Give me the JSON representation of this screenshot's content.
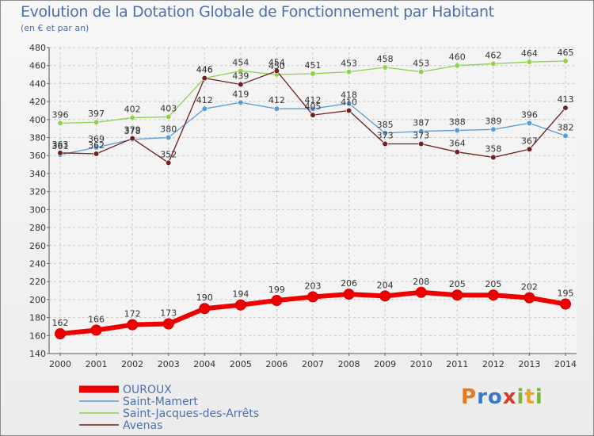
{
  "header": {
    "title": "Evolution de la Dotation Globale de Fonctionnement par Habitant",
    "subtitle": "(en € et par an)"
  },
  "logo": {
    "text": "Proxiti"
  },
  "chart_data": {
    "type": "line",
    "title": "Evolution de la Dotation Globale de Fonctionnement par Habitant",
    "subtitle": "(en € et par an)",
    "xlabel": "",
    "ylabel": "",
    "ylim": [
      140,
      480
    ],
    "yticks": [
      140,
      160,
      180,
      200,
      220,
      240,
      260,
      280,
      300,
      320,
      340,
      360,
      380,
      400,
      420,
      440,
      460,
      480
    ],
    "grid": true,
    "legend_position": "bottom-left",
    "categories": [
      "2000",
      "2001",
      "2002",
      "2003",
      "2004",
      "2005",
      "2006",
      "2007",
      "2008",
      "2009",
      "2010",
      "2011",
      "2012",
      "2013",
      "2014"
    ],
    "series": [
      {
        "name": "OUROUX",
        "color": "#ee0000",
        "emphasis": true,
        "values": [
          162,
          166,
          172,
          173,
          190,
          194,
          199,
          203,
          206,
          204,
          208,
          205,
          205,
          202,
          195
        ]
      },
      {
        "name": "Saint-Mamert",
        "color": "#5b9bd5",
        "emphasis": false,
        "values": [
          361,
          369,
          378,
          380,
          412,
          419,
          412,
          412,
          418,
          385,
          387,
          388,
          389,
          396,
          382
        ]
      },
      {
        "name": "Saint-Jacques-des-Arrêts",
        "color": "#92d050",
        "emphasis": false,
        "values": [
          396,
          397,
          402,
          403,
          446,
          454,
          450,
          451,
          453,
          458,
          453,
          460,
          462,
          464,
          465
        ]
      },
      {
        "name": "Avenas",
        "color": "#6e1f1f",
        "emphasis": false,
        "values": [
          363,
          362,
          379,
          352,
          446,
          439,
          454,
          405,
          410,
          373,
          373,
          364,
          358,
          367,
          413
        ]
      }
    ]
  }
}
